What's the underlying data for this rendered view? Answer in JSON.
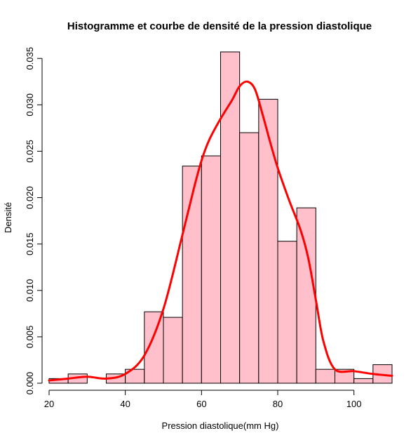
{
  "chart_data": {
    "type": "bar",
    "title": "Histogramme et courbe de densité de la pression diastolique",
    "xlabel": "Pression diastolique(mm Hg)",
    "ylabel": "Densité",
    "xlim": [
      20,
      110
    ],
    "ylim": [
      0,
      0.036
    ],
    "x_ticks": [
      20,
      40,
      60,
      80,
      100
    ],
    "y_ticks": [
      0.0,
      0.005,
      0.01,
      0.015,
      0.02,
      0.025,
      0.03,
      0.035
    ],
    "y_tick_labels": [
      "0.000",
      "0.005",
      "0.010",
      "0.015",
      "0.020",
      "0.025",
      "0.030",
      "0.035"
    ],
    "bin_edges": [
      20,
      25,
      30,
      35,
      40,
      45,
      50,
      55,
      60,
      65,
      70,
      75,
      80,
      85,
      90,
      95,
      100,
      105,
      110
    ],
    "values": [
      0.0005,
      0.001,
      0.0,
      0.001,
      0.0015,
      0.0077,
      0.0071,
      0.0234,
      0.0245,
      0.0357,
      0.027,
      0.0306,
      0.0153,
      0.0189,
      0.0015,
      0.0015,
      0.0005,
      0.002
    ],
    "bar_color": "#ffc0cb",
    "density_color": "#ff0000",
    "density_curve": {
      "x": [
        20,
        25,
        30,
        35,
        40,
        45,
        50,
        55,
        58,
        60,
        62,
        65,
        68,
        70,
        72,
        74,
        76,
        78,
        80,
        83,
        86,
        88,
        90,
        92,
        95,
        100,
        105,
        110
      ],
      "y": [
        0.0003,
        0.0005,
        0.0007,
        0.0005,
        0.001,
        0.003,
        0.008,
        0.016,
        0.021,
        0.024,
        0.0262,
        0.0285,
        0.0305,
        0.032,
        0.0325,
        0.0317,
        0.029,
        0.026,
        0.0232,
        0.0197,
        0.0165,
        0.0135,
        0.009,
        0.0045,
        0.0015,
        0.0013,
        0.001,
        0.0008
      ]
    }
  }
}
